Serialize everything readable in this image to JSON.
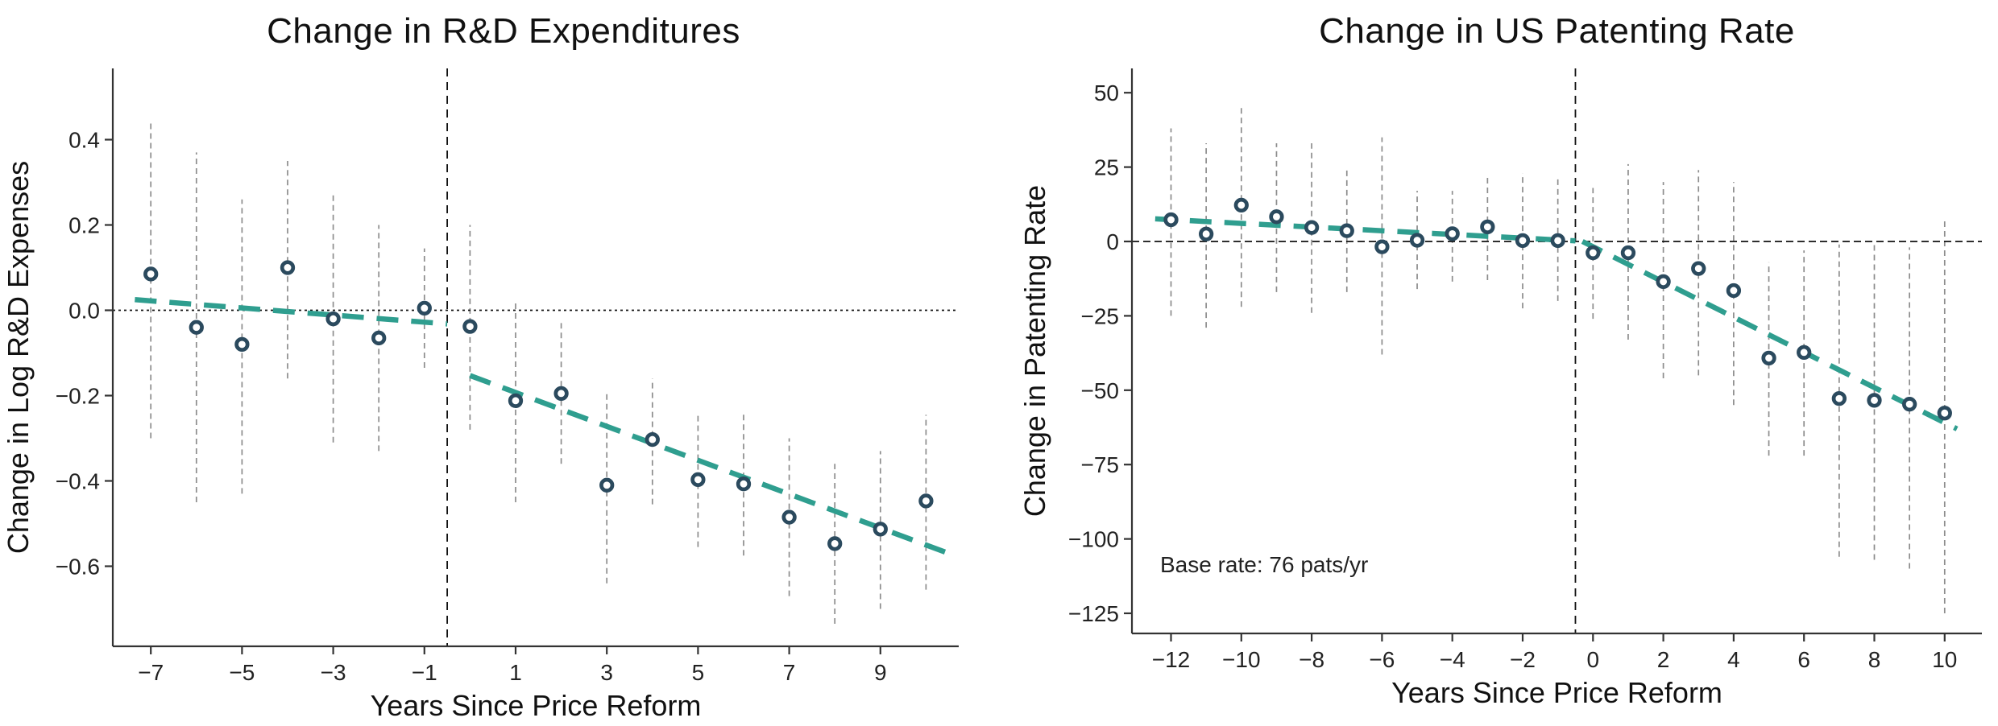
{
  "style": {
    "background": "#ffffff",
    "marker_color": "#2b4a5e",
    "marker_fill": "#ffffff",
    "trend_color": "#2f9e8f",
    "error_bar_color": "#8c8c8c",
    "axis_color": "#333333",
    "guide_line_color": "#111111",
    "text_color": "#222222"
  },
  "chart_data": [
    {
      "type": "scatter",
      "title": "Change in R&D Expenditures",
      "xlabel": "Years Since Price Reform",
      "ylabel": "Change in Log R&D Expenses",
      "xlim": [
        -7.83,
        10.72
      ],
      "ylim": [
        -0.788,
        0.567
      ],
      "grid": false,
      "legend": "none",
      "zero_line_y": 0,
      "event_line_x": -0.5,
      "x_ticks": [
        {
          "v": -7,
          "label": "−7"
        },
        {
          "v": -5,
          "label": "−5"
        },
        {
          "v": -3,
          "label": "−3"
        },
        {
          "v": -1,
          "label": "−1"
        },
        {
          "v": 1,
          "label": "1"
        },
        {
          "v": 3,
          "label": "3"
        },
        {
          "v": 5,
          "label": "5"
        },
        {
          "v": 7,
          "label": "7"
        },
        {
          "v": 9,
          "label": "9"
        }
      ],
      "y_ticks": [
        {
          "v": 0.4,
          "label": "0.4"
        },
        {
          "v": 0.2,
          "label": "0.2"
        },
        {
          "v": 0.0,
          "label": "0.0"
        },
        {
          "v": -0.2,
          "label": "−0.2"
        },
        {
          "v": -0.4,
          "label": "−0.4"
        },
        {
          "v": -0.6,
          "label": "−0.6"
        }
      ],
      "points": [
        {
          "x": -7,
          "y": 0.085,
          "lo": -0.3,
          "hi": 0.44
        },
        {
          "x": -6,
          "y": -0.04,
          "lo": -0.45,
          "hi": 0.37
        },
        {
          "x": -5,
          "y": -0.08,
          "lo": -0.43,
          "hi": 0.26
        },
        {
          "x": -4,
          "y": 0.1,
          "lo": -0.16,
          "hi": 0.35
        },
        {
          "x": -3,
          "y": -0.02,
          "lo": -0.31,
          "hi": 0.27
        },
        {
          "x": -2,
          "y": -0.065,
          "lo": -0.33,
          "hi": 0.2
        },
        {
          "x": -1,
          "y": 0.005,
          "lo": -0.135,
          "hi": 0.145
        },
        {
          "x": 0,
          "y": -0.038,
          "lo": -0.28,
          "hi": 0.2
        },
        {
          "x": 1,
          "y": -0.212,
          "lo": -0.45,
          "hi": 0.02
        },
        {
          "x": 2,
          "y": -0.195,
          "lo": -0.36,
          "hi": -0.03
        },
        {
          "x": 3,
          "y": -0.41,
          "lo": -0.64,
          "hi": -0.19
        },
        {
          "x": 4,
          "y": -0.303,
          "lo": -0.455,
          "hi": -0.16
        },
        {
          "x": 5,
          "y": -0.397,
          "lo": -0.555,
          "hi": -0.245
        },
        {
          "x": 6,
          "y": -0.407,
          "lo": -0.575,
          "hi": -0.24
        },
        {
          "x": 7,
          "y": -0.485,
          "lo": -0.67,
          "hi": -0.3
        },
        {
          "x": 8,
          "y": -0.547,
          "lo": -0.735,
          "hi": -0.36
        },
        {
          "x": 9,
          "y": -0.513,
          "lo": -0.7,
          "hi": -0.33
        },
        {
          "x": 10,
          "y": -0.447,
          "lo": -0.655,
          "hi": -0.245
        }
      ],
      "trend_pre": {
        "x1": -7.35,
        "y1": 0.025,
        "x2": -0.5,
        "y2": -0.032
      },
      "trend_post": {
        "x1": 0.0,
        "y1": -0.153,
        "x2": 10.45,
        "y2": -0.568
      }
    },
    {
      "type": "scatter",
      "title": "Change in US Patenting Rate",
      "xlabel": "Years Since Price Reform",
      "ylabel": "Change in Patenting Rate",
      "xlim": [
        -13.1,
        11.05
      ],
      "ylim": [
        -131.8,
        58.2
      ],
      "grid": false,
      "legend": "none",
      "zero_line_y": 0,
      "event_line_x": -0.5,
      "annotation": {
        "text": "Base rate: 76 pats/yr",
        "x": -12.3,
        "y": -109
      },
      "x_ticks": [
        {
          "v": -12,
          "label": "−12"
        },
        {
          "v": -10,
          "label": "−10"
        },
        {
          "v": -8,
          "label": "−8"
        },
        {
          "v": -6,
          "label": "−6"
        },
        {
          "v": -4,
          "label": "−4"
        },
        {
          "v": -2,
          "label": "−2"
        },
        {
          "v": 0,
          "label": "0"
        },
        {
          "v": 2,
          "label": "2"
        },
        {
          "v": 4,
          "label": "4"
        },
        {
          "v": 6,
          "label": "6"
        },
        {
          "v": 8,
          "label": "8"
        },
        {
          "v": 10,
          "label": "10"
        }
      ],
      "y_ticks": [
        {
          "v": 50,
          "label": "50"
        },
        {
          "v": 25,
          "label": "25"
        },
        {
          "v": 0,
          "label": "0"
        },
        {
          "v": -25,
          "label": "−25"
        },
        {
          "v": -50,
          "label": "−50"
        },
        {
          "v": -75,
          "label": "−75"
        },
        {
          "v": -100,
          "label": "−100"
        },
        {
          "v": -125,
          "label": "−125"
        }
      ],
      "points": [
        {
          "x": -12,
          "y": 7.3,
          "lo": -25,
          "hi": 38
        },
        {
          "x": -11,
          "y": 2.5,
          "lo": -29,
          "hi": 33
        },
        {
          "x": -10,
          "y": 12.2,
          "lo": -22,
          "hi": 45
        },
        {
          "x": -9,
          "y": 8.3,
          "lo": -17,
          "hi": 33
        },
        {
          "x": -8,
          "y": 4.7,
          "lo": -24,
          "hi": 33
        },
        {
          "x": -7,
          "y": 3.6,
          "lo": -17,
          "hi": 24
        },
        {
          "x": -6,
          "y": -1.8,
          "lo": -38,
          "hi": 35
        },
        {
          "x": -5,
          "y": 0.4,
          "lo": -16,
          "hi": 17
        },
        {
          "x": -4,
          "y": 2.6,
          "lo": -13.5,
          "hi": 17
        },
        {
          "x": -3,
          "y": 4.9,
          "lo": -13,
          "hi": 22
        },
        {
          "x": -2,
          "y": 0.3,
          "lo": -22.5,
          "hi": 23
        },
        {
          "x": -1,
          "y": 0.3,
          "lo": -20,
          "hi": 22
        },
        {
          "x": 0,
          "y": -3.8,
          "lo": -26,
          "hi": 18
        },
        {
          "x": 1,
          "y": -3.8,
          "lo": -33,
          "hi": 26
        },
        {
          "x": 2,
          "y": -13.5,
          "lo": -46,
          "hi": 20
        },
        {
          "x": 3,
          "y": -9.1,
          "lo": -45,
          "hi": 24
        },
        {
          "x": 4,
          "y": -16.5,
          "lo": -55,
          "hi": 20
        },
        {
          "x": 5,
          "y": -39.2,
          "lo": -72,
          "hi": -7
        },
        {
          "x": 6,
          "y": -37.3,
          "lo": -72,
          "hi": -3
        },
        {
          "x": 7,
          "y": -52.8,
          "lo": -106,
          "hi": -1
        },
        {
          "x": 8,
          "y": -53.4,
          "lo": -107,
          "hi": -1
        },
        {
          "x": 9,
          "y": -54.7,
          "lo": -110,
          "hi": -2
        },
        {
          "x": 10,
          "y": -57.7,
          "lo": -125,
          "hi": 7.5
        }
      ],
      "trend_pre": {
        "x1": -12.45,
        "y1": 7.6,
        "x2": -0.5,
        "y2": 0.2
      },
      "trend_post": {
        "x1": -0.3,
        "y1": 0.0,
        "x2": 10.35,
        "y2": -63
      }
    }
  ]
}
